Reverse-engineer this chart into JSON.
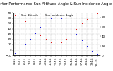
{
  "title": "Solar PV/Inverter Performance Sun Altitude Angle & Sun Incidence Angle on PV Panels",
  "background_color": "#ffffff",
  "grid_color": "#bbbbbb",
  "ylim_left": [
    -10,
    70
  ],
  "ylim_right": [
    0,
    90
  ],
  "yticks_left": [
    -10,
    0,
    10,
    20,
    30,
    40,
    50,
    60,
    70
  ],
  "yticks_right": [
    0,
    20,
    40,
    60,
    80
  ],
  "time_labels": [
    "4:15",
    "5:15",
    "6:15",
    "7:15",
    "8:15",
    "9:15",
    "10:15",
    "11:15",
    "12:15",
    "13:15",
    "14:15",
    "15:15",
    "16:15",
    "17:15",
    "18:15",
    "19:15",
    "20:15"
  ],
  "xtick_vals": [
    4.25,
    5.25,
    6.25,
    7.25,
    8.25,
    9.25,
    10.25,
    11.25,
    12.25,
    13.25,
    14.25,
    15.25,
    16.25,
    17.25,
    18.25,
    19.25,
    20.25
  ],
  "sun_altitude": {
    "color": "#0000dd",
    "x": [
      4.25,
      5.25,
      6.25,
      7.25,
      8.25,
      9.25,
      10.25,
      11.25,
      12.25,
      13.25,
      14.25,
      15.25,
      16.25,
      17.25,
      18.25,
      19.25,
      20.25
    ],
    "y": [
      -6,
      2,
      11,
      21,
      32,
      43,
      52,
      59,
      62,
      59,
      52,
      42,
      30,
      18,
      7,
      -2,
      -7
    ]
  },
  "sun_incidence": {
    "color": "#dd0000",
    "x": [
      4.25,
      5.25,
      6.25,
      7.25,
      8.25,
      9.25,
      10.25,
      11.25,
      12.25,
      13.25,
      14.25,
      15.25,
      16.25,
      17.25,
      18.25,
      19.25,
      20.25
    ],
    "y": [
      85,
      80,
      72,
      63,
      52,
      42,
      34,
      28,
      25,
      28,
      34,
      44,
      55,
      67,
      77,
      84,
      88
    ]
  },
  "legend": [
    {
      "label": "Sun Altitude",
      "color": "#0000dd"
    },
    {
      "label": "Sun Incidence Angle",
      "color": "#dd0000"
    }
  ],
  "title_fontsize": 3.8,
  "tick_fontsize": 3.0,
  "legend_fontsize": 2.8,
  "dot_size": 0.8,
  "xlim": [
    4.0,
    20.7
  ]
}
